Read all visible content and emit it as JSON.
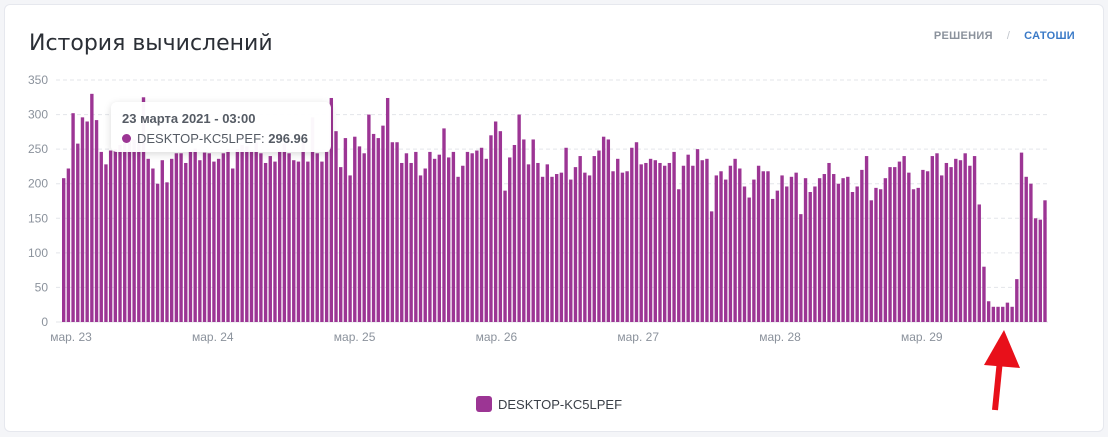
{
  "header": {
    "title": "История вычислений",
    "toggle_solutions": "РЕШЕНИЯ",
    "toggle_separator": "/",
    "toggle_satoshi": "САТОШИ"
  },
  "colors": {
    "series": "#9c3594",
    "arrow": "#e8101a",
    "grid": "#e3e5ea"
  },
  "tooltip": {
    "date": "23 марта 2021 - 03:00",
    "label": "DESKTOP-KC5LPEF: ",
    "value": "296.96"
  },
  "annotation": {
    "icon": "red-arrow-icon"
  },
  "chart_data": {
    "type": "bar",
    "title": "История вычислений",
    "ylim": [
      0,
      350
    ],
    "yticks": [
      "0",
      "50",
      "100",
      "150",
      "200",
      "250",
      "300",
      "350"
    ],
    "x_labels": [
      "мар. 23",
      "мар. 24",
      "мар. 25",
      "мар. 26",
      "мар. 27",
      "мар. 28",
      "мар. 29"
    ],
    "legend": [
      "DESKTOP-KC5LPEF"
    ],
    "series": [
      {
        "name": "DESKTOP-KC5LPEF",
        "values": [
          208,
          222,
          302,
          258,
          296,
          290,
          330,
          292,
          246,
          228,
          248,
          250,
          256,
          260,
          262,
          264,
          268,
          325,
          236,
          222,
          200,
          234,
          202,
          236,
          244,
          244,
          230,
          246,
          251,
          234,
          245,
          244,
          232,
          236,
          244,
          250,
          222,
          250,
          256,
          254,
          248,
          260,
          244,
          230,
          240,
          232,
          248,
          258,
          244,
          234,
          232,
          262,
          232,
          296,
          244,
          232,
          246,
          324,
          276,
          224,
          266,
          212,
          268,
          254,
          244,
          300,
          272,
          266,
          284,
          324,
          260,
          260,
          230,
          244,
          230,
          246,
          212,
          222,
          246,
          236,
          242,
          280,
          238,
          246,
          210,
          226,
          246,
          244,
          248,
          252,
          236,
          270,
          290,
          276,
          190,
          238,
          256,
          300,
          264,
          228,
          264,
          230,
          210,
          228,
          210,
          214,
          216,
          252,
          206,
          224,
          240,
          216,
          212,
          240,
          248,
          268,
          264,
          218,
          236,
          216,
          218,
          252,
          260,
          228,
          230,
          236,
          234,
          230,
          226,
          230,
          246,
          192,
          226,
          242,
          226,
          250,
          234,
          236,
          160,
          212,
          218,
          206,
          226,
          236,
          222,
          196,
          180,
          206,
          226,
          218,
          218,
          178,
          190,
          212,
          196,
          210,
          216,
          156,
          208,
          188,
          196,
          208,
          214,
          230,
          214,
          200,
          208,
          210,
          188,
          196,
          220,
          240,
          176,
          194,
          192,
          208,
          224,
          224,
          232,
          240,
          216,
          192,
          194,
          220,
          218,
          240,
          244,
          212,
          230,
          224,
          236,
          234,
          244,
          226,
          240,
          170,
          80,
          30,
          22,
          22,
          22,
          28,
          22,
          62,
          245,
          210,
          200,
          150,
          148,
          176
        ]
      }
    ]
  }
}
